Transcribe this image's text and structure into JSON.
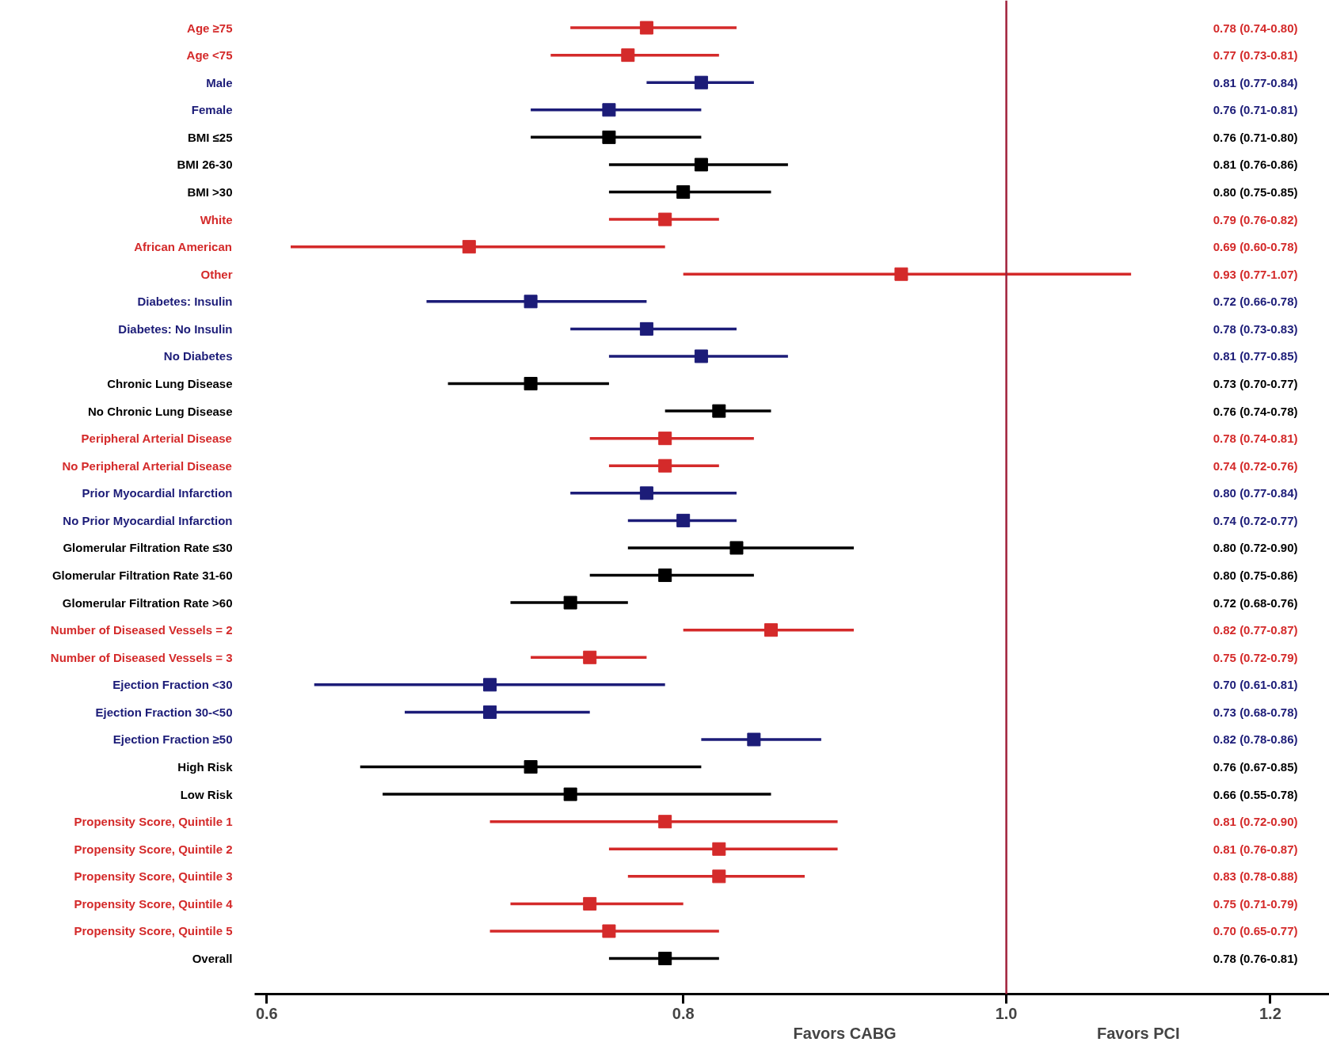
{
  "chart_data": {
    "type": "scatter",
    "orientation": "horizontal",
    "log": "x",
    "marker": "square",
    "categories": [
      "Age ≥75",
      "Age <75",
      "Male",
      "Female",
      "BMI ≤25",
      "BMI 26-30",
      "BMI >30",
      "White",
      "African American",
      "Other",
      "Diabetes: Insulin",
      "Diabetes: No Insulin",
      "No Diabetes",
      "Chronic Lung Disease",
      "No Chronic Lung Disease",
      "Peripheral Arterial Disease",
      "No Peripheral Arterial Disease",
      "Prior Myocardial Infarction",
      "No Prior Myocardial Infarction",
      "Glomerular Filtration Rate ≤30",
      "Glomerular Filtration Rate 31-60",
      "Glomerular Filtration Rate >60",
      "Number of Diseased Vessels = 2",
      "Number of Diseased Vessels = 3",
      "Ejection Fraction <30",
      "Ejection Fraction 30-<50",
      "Ejection Fraction ≥50",
      "High Risk",
      "Low Risk",
      "Propensity Score, Quintile 1",
      "Propensity Score, Quintile 2",
      "Propensity Score, Quintile 3",
      "Propensity Score, Quintile 4",
      "Propensity Score, Quintile 5",
      "Overall"
    ],
    "values": [
      0.78,
      0.77,
      0.81,
      0.76,
      0.76,
      0.81,
      0.8,
      0.79,
      0.69,
      0.93,
      0.72,
      0.78,
      0.81,
      0.72,
      0.82,
      0.79,
      0.79,
      0.78,
      0.8,
      0.83,
      0.79,
      0.74,
      0.85,
      0.75,
      0.7,
      0.7,
      0.84,
      0.72,
      0.74,
      0.79,
      0.82,
      0.82,
      0.75,
      0.76,
      0.79
    ],
    "errors": [
      [
        0.74,
        0.83
      ],
      [
        0.73,
        0.82
      ],
      [
        0.78,
        0.84
      ],
      [
        0.72,
        0.81
      ],
      [
        0.72,
        0.81
      ],
      [
        0.76,
        0.86
      ],
      [
        0.76,
        0.85
      ],
      [
        0.76,
        0.82
      ],
      [
        0.61,
        0.79
      ],
      [
        0.8,
        1.09
      ],
      [
        0.67,
        0.78
      ],
      [
        0.74,
        0.83
      ],
      [
        0.76,
        0.86
      ],
      [
        0.68,
        0.76
      ],
      [
        0.79,
        0.85
      ],
      [
        0.75,
        0.84
      ],
      [
        0.76,
        0.82
      ],
      [
        0.74,
        0.83
      ],
      [
        0.77,
        0.83
      ],
      [
        0.77,
        0.9
      ],
      [
        0.75,
        0.84
      ],
      [
        0.71,
        0.77
      ],
      [
        0.8,
        0.9
      ],
      [
        0.72,
        0.78
      ],
      [
        0.62,
        0.79
      ],
      [
        0.66,
        0.75
      ],
      [
        0.81,
        0.88
      ],
      [
        0.64,
        0.81
      ],
      [
        0.65,
        0.85
      ],
      [
        0.7,
        0.89
      ],
      [
        0.76,
        0.89
      ],
      [
        0.77,
        0.87
      ],
      [
        0.71,
        0.8
      ],
      [
        0.7,
        0.82
      ],
      [
        0.76,
        0.82
      ]
    ],
    "colors": [
      "#d42a2a",
      "#d42a2a",
      "#1c1c78",
      "#1c1c78",
      "#000000",
      "#000000",
      "#000000",
      "#d42a2a",
      "#d42a2a",
      "#d42a2a",
      "#1c1c78",
      "#1c1c78",
      "#1c1c78",
      "#000000",
      "#000000",
      "#d42a2a",
      "#d42a2a",
      "#1c1c78",
      "#1c1c78",
      "#000000",
      "#000000",
      "#000000",
      "#d42a2a",
      "#d42a2a",
      "#1c1c78",
      "#1c1c78",
      "#1c1c78",
      "#000000",
      "#000000",
      "#d42a2a",
      "#d42a2a",
      "#d42a2a",
      "#d42a2a",
      "#d42a2a",
      "#000000"
    ],
    "xlim": [
      0.595,
      1.25
    ],
    "xticks": [
      0.6,
      0.8,
      {
        "value": 1.0,
        "label": "1.0"
      },
      1.2
    ],
    "ref_lines": [
      {
        "axis": "x",
        "value": 1.0,
        "color": "#a0203a"
      }
    ],
    "annotations": [
      "Favors CABG",
      "Favors PCI",
      "0.78 (0.74-0.80)",
      "0.77 (0.73-0.81)",
      "0.81 (0.77-0.84)",
      "0.76 (0.71-0.81)",
      "0.76 (0.71-0.80)",
      "0.81 (0.76-0.86)",
      "0.80 (0.75-0.85)",
      "0.79 (0.76-0.82)",
      "0.69 (0.60-0.78)",
      "0.93 (0.77-1.07)",
      "0.72 (0.66-0.78)",
      "0.78 (0.73-0.83)",
      "0.81 (0.77-0.85)",
      "0.73 (0.70-0.77)",
      "0.76 (0.74-0.78)",
      "0.78 (0.74-0.81)",
      "0.74 (0.72-0.76)",
      "0.80 (0.77-0.84)",
      "0.74 (0.72-0.77)",
      "0.80 (0.72-0.90)",
      "0.80 (0.75-0.86)",
      "0.72 (0.68-0.76)",
      "0.82 (0.77-0.87)",
      "0.75 (0.72-0.79)",
      "0.70 (0.61-0.81)",
      "0.73 (0.68-0.78)",
      "0.82 (0.78-0.86)",
      "0.76 (0.67-0.85)",
      "0.66 (0.55-0.78)",
      "0.81 (0.72-0.90)",
      "0.81 (0.76-0.87)",
      "0.83 (0.78-0.88)",
      "0.75 (0.71-0.79)",
      "0.70 (0.65-0.77)",
      "0.78 (0.76-0.81)"
    ]
  }
}
